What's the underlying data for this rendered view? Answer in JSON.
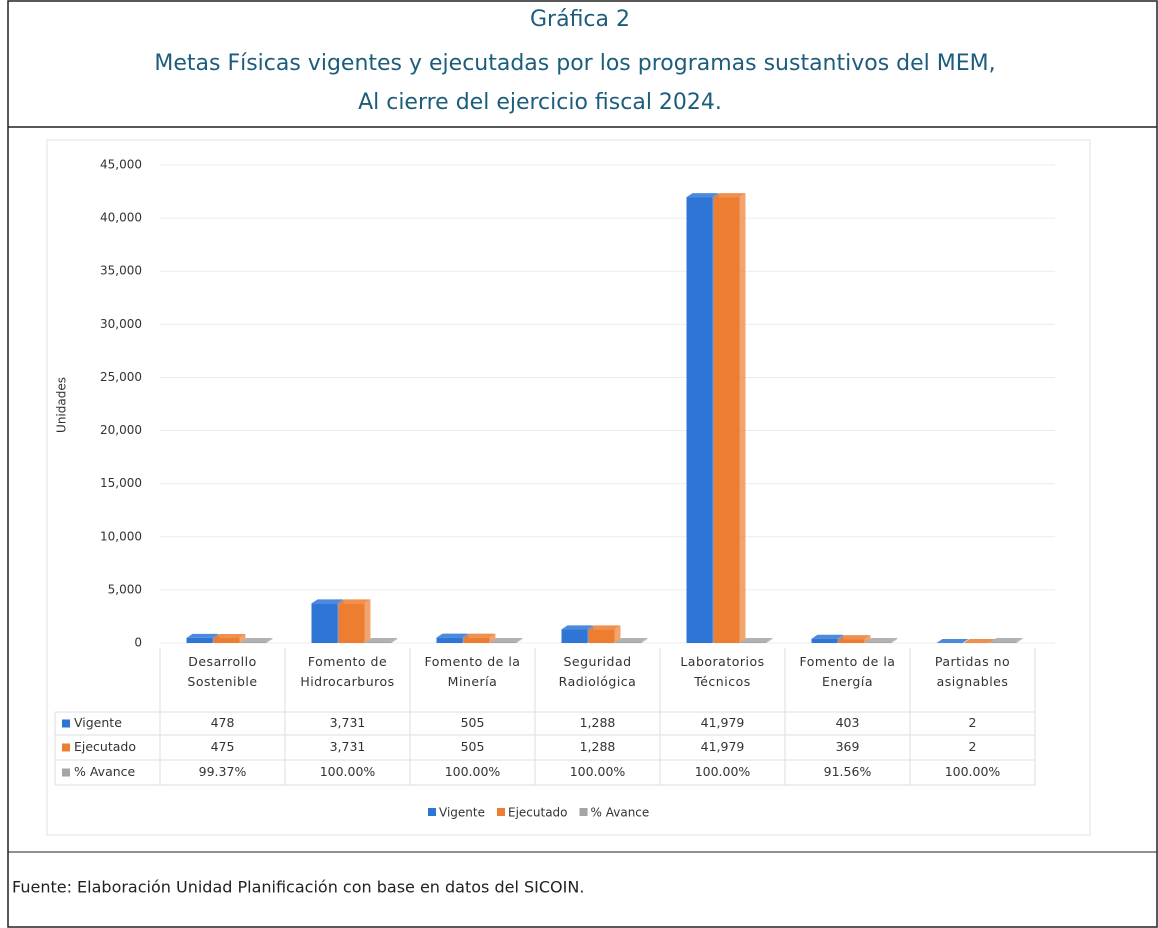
{
  "chart_data": {
    "type": "bar",
    "title": "Gráfica 2",
    "subtitle": [
      "Metas Físicas vigentes y ejecutadas por los programas sustantivos del MEM,",
      "Al cierre del ejercicio fiscal 2024."
    ],
    "y_label": "Unidades",
    "categories": [
      "Desarrollo Sostenible",
      "Fomento de Hidrocarburos",
      "Fomento de la Minería",
      "Seguridad Radiológica",
      "Laboratorios Técnicos",
      "Fomento de la Energía",
      "Partidas no asignables"
    ],
    "series": [
      {
        "name": "Vigente",
        "color": "#2e75d6",
        "values": [
          478,
          3731,
          505,
          1288,
          41979,
          403,
          2
        ],
        "value_labels": [
          "478",
          "3,731",
          "505",
          "1,288",
          "41,979",
          "403",
          "2"
        ]
      },
      {
        "name": "Ejecutado",
        "color": "#ed7d31",
        "values": [
          475,
          3731,
          505,
          1288,
          41979,
          369,
          2
        ],
        "value_labels": [
          "475",
          "3,731",
          "505",
          "1,288",
          "41,979",
          "369",
          "2"
        ]
      },
      {
        "name": "% Avance",
        "color": "#a5a5a5",
        "values": [
          99.37,
          100,
          100,
          100,
          100,
          91.56,
          100
        ],
        "value_labels": [
          "99.37%",
          "100.00%",
          "100.00%",
          "100.00%",
          "100.00%",
          "91.56%",
          "100.00%"
        ]
      }
    ],
    "ylim": [
      0,
      45000
    ],
    "yticks": [
      0,
      {
        "value": 5000,
        "label": "5,000"
      },
      {
        "value": 10000,
        "label": "10,000"
      },
      {
        "value": 15000,
        "label": "15,000"
      },
      {
        "value": 20000,
        "label": "20,000"
      },
      {
        "value": 25000,
        "label": "25,000"
      },
      {
        "value": 30000,
        "label": "30,000"
      },
      {
        "value": 35000,
        "label": "35,000"
      },
      {
        "value": 40000,
        "label": "40,000"
      },
      {
        "value": 45000,
        "label": "45,000"
      }
    ],
    "grid": true,
    "legend": "bottom",
    "source": "Fuente: Elaboración Unidad Planificación con base en datos del SICOIN."
  }
}
